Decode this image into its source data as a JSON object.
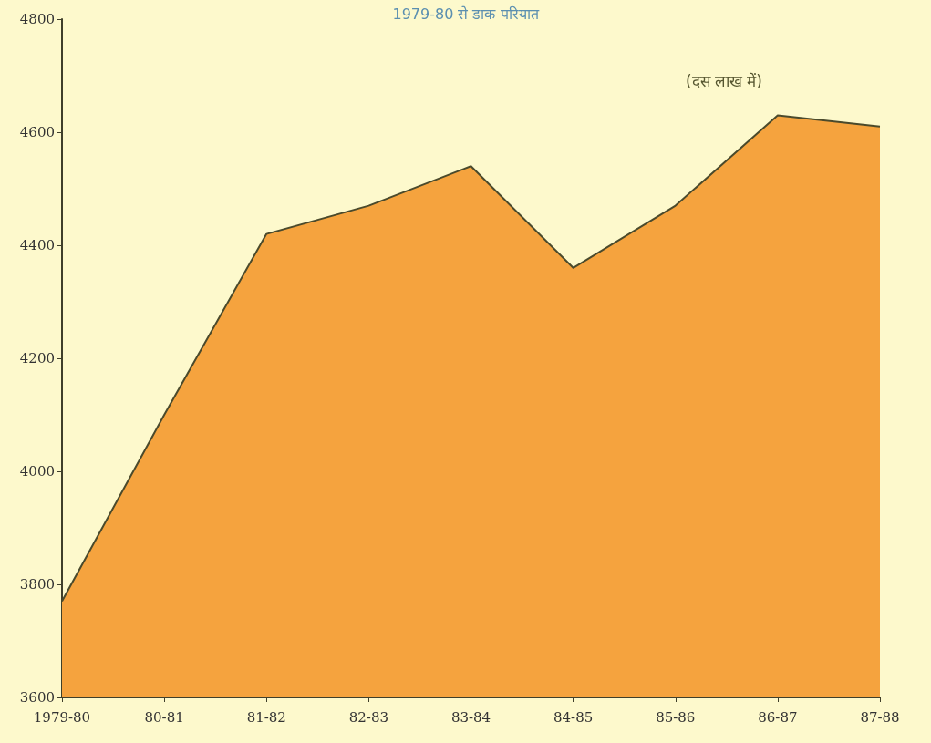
{
  "chart_data": {
    "type": "area",
    "title": "1979-80 से डाक परियात",
    "annotations": [
      "(दस लाख में)"
    ],
    "categories": [
      "1979-80",
      "80-81",
      "81-82",
      "82-83",
      "83-84",
      "84-85",
      "85-86",
      "86-87",
      "87-88"
    ],
    "series": [
      {
        "color": "#f5a33e",
        "values": [
          3770,
          4100,
          4420,
          4470,
          4540,
          4360,
          4470,
          4630,
          4610
        ]
      }
    ],
    "ylim": [
      3600,
      4800
    ],
    "yticks": [
      3600,
      3800,
      4000,
      4200,
      4400,
      4600,
      4800
    ],
    "grid": false,
    "marker": "none",
    "line_style": "solid"
  }
}
